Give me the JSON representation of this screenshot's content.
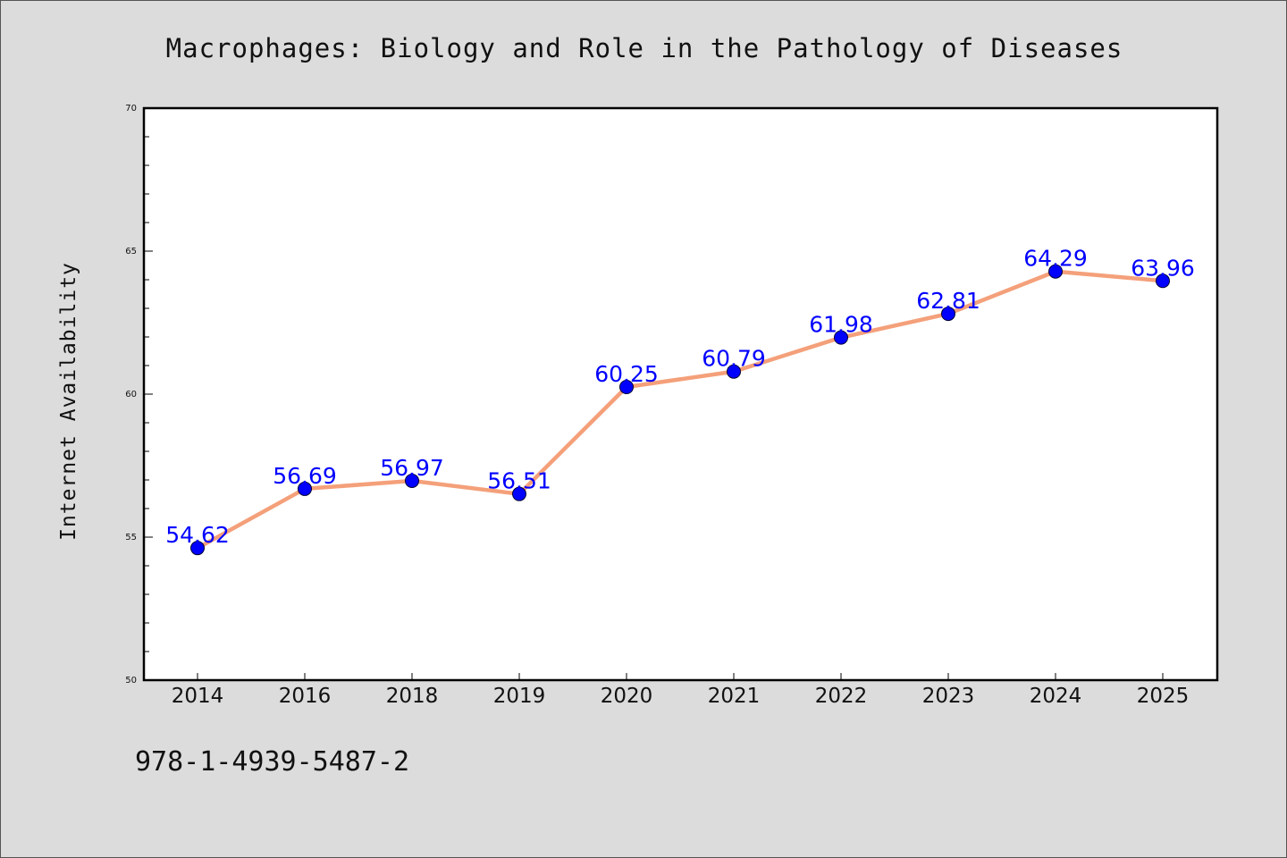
{
  "chart_data": {
    "type": "line",
    "title": "Macrophages: Biology and Role in the Pathology of Diseases",
    "xlabel": "",
    "ylabel": "Internet Availability",
    "categories": [
      "2014",
      "2016",
      "2018",
      "2019",
      "2020",
      "2021",
      "2022",
      "2023",
      "2024",
      "2025"
    ],
    "series": [
      {
        "values": [
          54.62,
          56.69,
          56.97,
          56.51,
          60.25,
          60.79,
          61.98,
          62.81,
          64.29,
          63.96
        ],
        "data_labels": [
          "54.62",
          "56.69",
          "56.97",
          "56.51",
          "60.25",
          "60.79",
          "61.98",
          "62.81",
          "64.29",
          "63.96"
        ]
      }
    ],
    "ylim": [
      50,
      70
    ],
    "yticks": [
      50,
      55,
      60,
      65,
      70
    ],
    "ytick_labels": [
      "50",
      "55",
      "60",
      "65",
      "70"
    ],
    "grid": false,
    "legend": "none",
    "colors": {
      "line": "#f4a07a",
      "marker_fill": "#0000ff",
      "marker_edge": "#000033",
      "data_label": "#0000ff",
      "figure_background": "#dcdcdc",
      "plot_background": "#ffffff"
    }
  },
  "annotation": {
    "isbn": "978-1-4939-5487-2"
  }
}
